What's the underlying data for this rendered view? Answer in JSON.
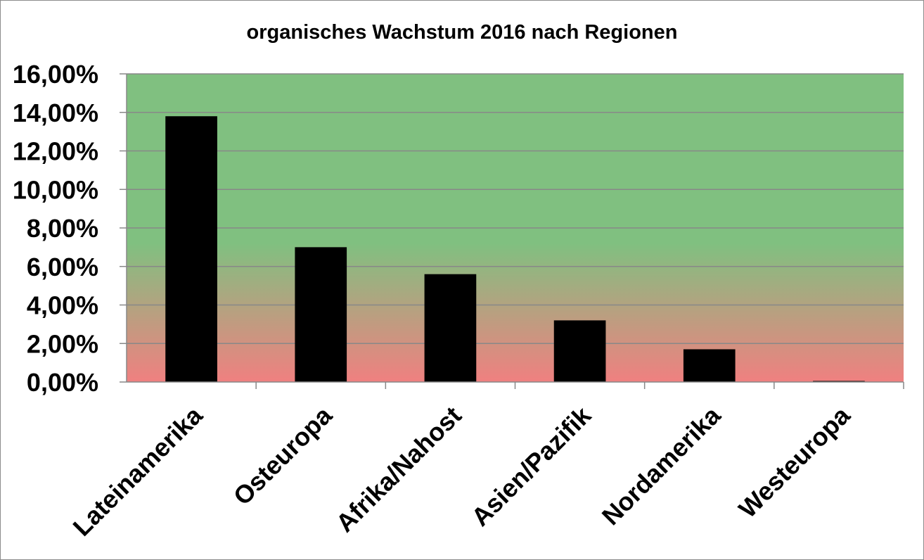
{
  "chart_data": {
    "type": "bar",
    "title": "organisches Wachstum 2016 nach Regionen",
    "xlabel": "",
    "ylabel": "",
    "categories": [
      "Lateinamerika",
      "Osteuropa",
      "Afrika/Nahost",
      "Asien/Pazifik",
      "Nordamerika",
      "Westeuropa"
    ],
    "values": [
      13.8,
      7.0,
      5.6,
      3.2,
      1.7,
      0.0
    ],
    "unit": "%",
    "ylim": [
      0,
      16
    ],
    "yticks": [
      0,
      2,
      4,
      6,
      8,
      10,
      12,
      14,
      16
    ],
    "ytick_labels": [
      "0,00%",
      "2,00%",
      "4,00%",
      "6,00%",
      "8,00%",
      "10,00%",
      "12,00%",
      "14,00%",
      "16,00%"
    ],
    "grid": true,
    "legend": "none",
    "colors": {
      "bar": "#000000",
      "background_top": "#80c080",
      "background_bottom": "#f08080",
      "gridline": "#888888"
    }
  }
}
